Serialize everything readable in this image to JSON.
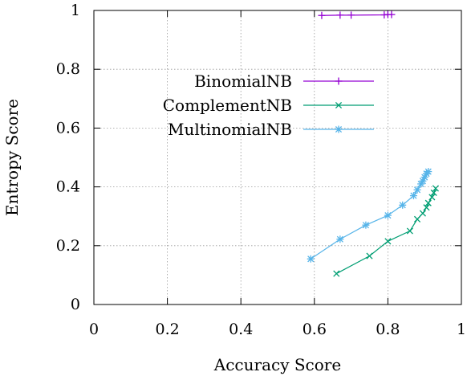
{
  "chart_data": {
    "type": "line",
    "xlabel": "Accuracy Score",
    "ylabel": "Entropy Score",
    "xlim": [
      0,
      1
    ],
    "ylim": [
      0,
      1
    ],
    "xticks": [
      "0",
      "0.2",
      "0.4",
      "0.6",
      "0.8",
      "1"
    ],
    "yticks": [
      "0",
      "0.2",
      "0.4",
      "0.6",
      "0.8",
      "1"
    ],
    "grid": true,
    "legend_position": "left-center",
    "series": [
      {
        "name": "BinomialNB",
        "color": "#9400d3",
        "marker": "plus",
        "points": [
          [
            0.62,
            0.983
          ],
          [
            0.67,
            0.984
          ],
          [
            0.7,
            0.984
          ],
          [
            0.79,
            0.985
          ],
          [
            0.8,
            0.986
          ],
          [
            0.81,
            0.986
          ]
        ]
      },
      {
        "name": "ComplementNB",
        "color": "#009e73",
        "marker": "x",
        "points": [
          [
            0.66,
            0.105
          ],
          [
            0.75,
            0.165
          ],
          [
            0.8,
            0.215
          ],
          [
            0.86,
            0.25
          ],
          [
            0.88,
            0.29
          ],
          [
            0.895,
            0.31
          ],
          [
            0.905,
            0.33
          ],
          [
            0.91,
            0.345
          ],
          [
            0.92,
            0.365
          ],
          [
            0.925,
            0.38
          ],
          [
            0.93,
            0.395
          ]
        ]
      },
      {
        "name": "MultinomialNB",
        "color": "#56b4e9",
        "marker": "asterisk",
        "points": [
          [
            0.59,
            0.155
          ],
          [
            0.67,
            0.222
          ],
          [
            0.74,
            0.27
          ],
          [
            0.8,
            0.303
          ],
          [
            0.84,
            0.338
          ],
          [
            0.87,
            0.37
          ],
          [
            0.88,
            0.39
          ],
          [
            0.89,
            0.41
          ],
          [
            0.895,
            0.42
          ],
          [
            0.9,
            0.433
          ],
          [
            0.905,
            0.445
          ],
          [
            0.91,
            0.452
          ]
        ]
      }
    ]
  }
}
